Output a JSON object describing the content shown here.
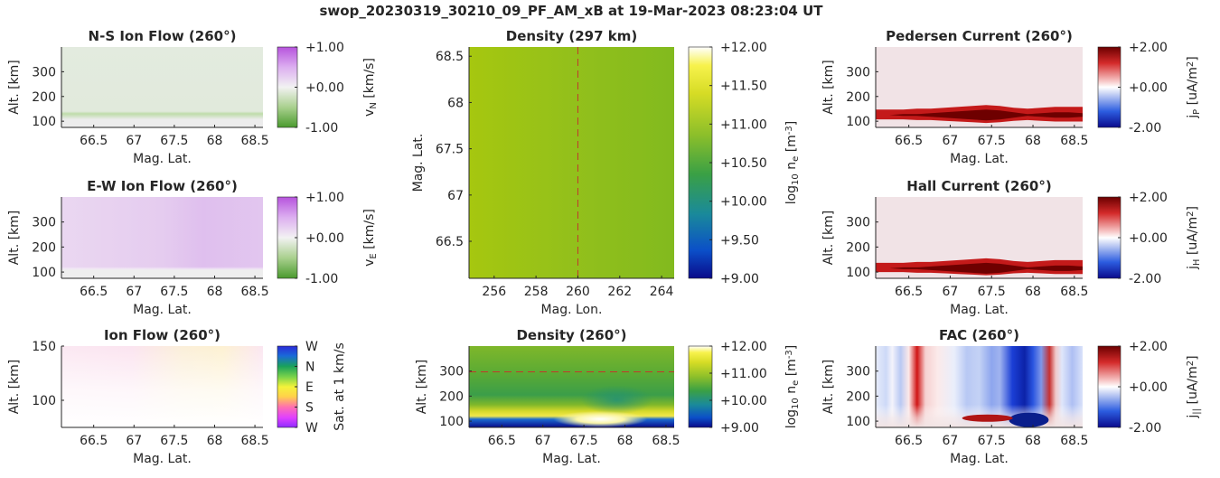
{
  "figure": {
    "title": "swop_20230319_30210_09_PF_AM_xB at 19-Mar-2023 08:23:04 UT"
  },
  "colors": {
    "text": "#262626",
    "density_marker_line": "#c0392b"
  },
  "chart_data": [
    {
      "id": "ns_flow",
      "type": "heatmap",
      "title": "N-S Ion Flow (260°)",
      "xlabel": "Mag. Lat.",
      "ylabel": "Alt. [km]",
      "xlim": [
        66.1,
        68.6
      ],
      "ylim": [
        75,
        400
      ],
      "xticks": [
        "66.5",
        "67",
        "67.5",
        "68",
        "68.5"
      ],
      "yticks": [
        "100",
        "200",
        "300"
      ],
      "colorbar": {
        "label": "v_N [km/s]",
        "ticks": [
          "+1.00",
          "+0.00",
          "-1.00"
        ],
        "colormap": "green-white-purple"
      },
      "description_values": {
        "upper_altitude_flow": -0.05,
        "thin_band_near_130km": -0.25
      }
    },
    {
      "id": "ew_flow",
      "type": "heatmap",
      "title": "E-W Ion Flow (260°)",
      "xlabel": "Mag. Lat.",
      "ylabel": "Alt. [km]",
      "xlim": [
        66.1,
        68.6
      ],
      "ylim": [
        75,
        400
      ],
      "xticks": [
        "66.5",
        "67",
        "67.5",
        "68",
        "68.5"
      ],
      "yticks": [
        "100",
        "200",
        "300"
      ],
      "colorbar": {
        "label": "v_E [km/s]",
        "ticks": [
          "+1.00",
          "+0.00",
          "-1.00"
        ],
        "colormap": "green-white-purple"
      },
      "description_values": {
        "flow_at_66.5": 0.15,
        "flow_at_68": 0.25
      }
    },
    {
      "id": "ion_flow",
      "type": "heatmap",
      "title": "Ion Flow (260°)",
      "xlabel": "Mag. Lat.",
      "ylabel": "Alt. [km]",
      "xlim": [
        66.1,
        68.6
      ],
      "ylim": [
        75,
        150
      ],
      "xticks": [
        "66.5",
        "67",
        "67.5",
        "68",
        "68.5"
      ],
      "yticks": [
        "100",
        "150"
      ],
      "colorbar": {
        "label": "Sat. at 1 km/s",
        "ticks": [
          "W",
          "N",
          "E",
          "S",
          "W"
        ],
        "colormap": "direction-wheel"
      }
    },
    {
      "id": "density_map",
      "type": "heatmap",
      "title": "Density (297 km)",
      "xlabel": "Mag. Lon.",
      "ylabel": "Mag. Lat.",
      "xlim": [
        254.8,
        264.6
      ],
      "ylim": [
        66.1,
        68.6
      ],
      "xticks": [
        "256",
        "258",
        "260",
        "262",
        "264"
      ],
      "yticks": [
        "66.5",
        "67",
        "67.5",
        "68",
        "68.5"
      ],
      "marker_x": 260,
      "colorbar": {
        "label": "log10 n_e [m^-3]",
        "ticks": [
          "+12.00",
          "+11.50",
          "+11.00",
          "+10.50",
          "+10.00",
          "+9.50",
          "+9.00"
        ],
        "colormap": "parula"
      },
      "description_values": {
        "log10_ne_west": 11.1,
        "log10_ne_east": 10.9
      }
    },
    {
      "id": "density_profile",
      "type": "heatmap",
      "title": "Density (260°)",
      "xlabel": "Mag. Lat.",
      "ylabel": "Alt. [km]",
      "xlim": [
        66.1,
        68.6
      ],
      "ylim": [
        75,
        400
      ],
      "xticks": [
        "66.5",
        "67",
        "67.5",
        "68",
        "68.5"
      ],
      "yticks": [
        "100",
        "200",
        "300"
      ],
      "marker_y": 297,
      "colorbar": {
        "label": "log10 n_e [m^-3]",
        "ticks": [
          "+12.00",
          "+11.00",
          "+10.00",
          "+9.00"
        ],
        "colormap": "parula"
      },
      "description_values": {
        "peak_log10_ne": 12.0,
        "peak_lat": 67.7,
        "peak_alt_km": 110
      }
    },
    {
      "id": "pedersen",
      "type": "heatmap",
      "title": "Pedersen Current (260°)",
      "xlabel": "Mag. Lat.",
      "ylabel": "Alt. [km]",
      "xlim": [
        66.1,
        68.6
      ],
      "ylim": [
        75,
        400
      ],
      "xticks": [
        "66.5",
        "67",
        "67.5",
        "68",
        "68.5"
      ],
      "yticks": [
        "100",
        "200",
        "300"
      ],
      "colorbar": {
        "label": "j_P [uA/m^2]",
        "ticks": [
          "+2.00",
          "+0.00",
          "-2.00"
        ],
        "colormap": "blue-white-red"
      },
      "description_values": {
        "band_alt_km": 125,
        "max_current_lat": 67.7
      }
    },
    {
      "id": "hall",
      "type": "heatmap",
      "title": "Hall Current (260°)",
      "xlabel": "Mag. Lat.",
      "ylabel": "Alt. [km]",
      "xlim": [
        66.1,
        68.6
      ],
      "ylim": [
        75,
        400
      ],
      "xticks": [
        "66.5",
        "67",
        "67.5",
        "68",
        "68.5"
      ],
      "yticks": [
        "100",
        "200",
        "300"
      ],
      "colorbar": {
        "label": "j_H [uA/m^2]",
        "ticks": [
          "+2.00",
          "+0.00",
          "-2.00"
        ],
        "colormap": "blue-white-red"
      },
      "description_values": {
        "band_alt_km": 115,
        "max_current_lat": 67.7
      }
    },
    {
      "id": "fac",
      "type": "heatmap",
      "title": "FAC (260°)",
      "xlabel": "Mag. Lat.",
      "ylabel": "Alt. [km]",
      "xlim": [
        66.1,
        68.6
      ],
      "ylim": [
        75,
        400
      ],
      "xticks": [
        "66.5",
        "67",
        "67.5",
        "68",
        "68.5"
      ],
      "yticks": [
        "100",
        "200",
        "300"
      ],
      "colorbar": {
        "label": "j_|| [uA/m^2]",
        "ticks": [
          "+2.00",
          "+0.00",
          "-2.00"
        ],
        "colormap": "blue-white-red"
      },
      "description_values": {
        "strong_downward_lat": 67.9,
        "strong_upward_lat": 66.65
      }
    }
  ]
}
